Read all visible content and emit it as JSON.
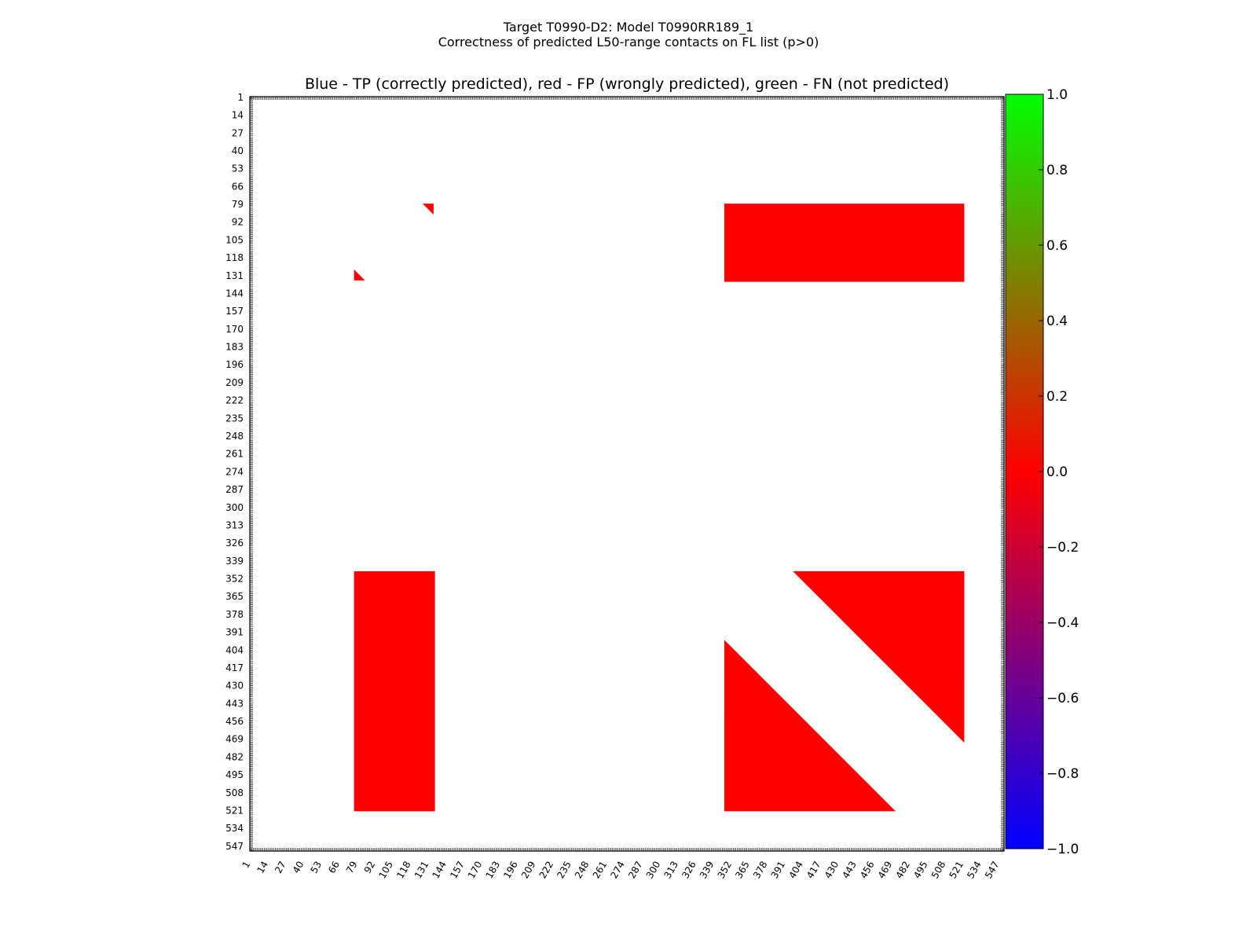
{
  "chart_data": {
    "type": "heatmap",
    "title_line1": "Target T0990-D2: Model T0990RR189_1",
    "title_line2": "Correctness of predicted L50-range contacts on FL list (p>0)",
    "subtitle": "Blue - TP (correctly predicted), red - FP (wrongly predicted), green - FN (not predicted)",
    "xlabel": "",
    "ylabel": "",
    "axis_range": [
      1,
      550
    ],
    "ticks": [
      "1",
      "14",
      "27",
      "40",
      "53",
      "66",
      "79",
      "92",
      "105",
      "118",
      "131",
      "144",
      "157",
      "170",
      "183",
      "196",
      "209",
      "222",
      "235",
      "248",
      "261",
      "274",
      "287",
      "300",
      "313",
      "326",
      "339",
      "352",
      "365",
      "378",
      "391",
      "404",
      "417",
      "430",
      "443",
      "456",
      "469",
      "482",
      "495",
      "508",
      "521",
      "534",
      "547"
    ],
    "colorbar": {
      "vmin": -1.0,
      "vmax": 1.0,
      "ticks": [
        "1.0",
        "0.8",
        "0.6",
        "0.4",
        "0.2",
        "0.0",
        "−0.2",
        "−0.4",
        "−0.6",
        "−0.8",
        "−1.0"
      ],
      "colors": [
        "#0000ff",
        "#ff0000",
        "#00ff00"
      ]
    },
    "regions": [
      {
        "shape": "triangle",
        "value": 0.0,
        "points": [
          [
            127,
            79
          ],
          [
            135,
            79
          ],
          [
            135,
            87
          ]
        ]
      },
      {
        "shape": "triangle",
        "value": 0.0,
        "points": [
          [
            77,
            127
          ],
          [
            77,
            135
          ],
          [
            85,
            135
          ]
        ]
      },
      {
        "shape": "rect",
        "value": 0.0,
        "x": [
          347,
          522
        ],
        "y": [
          79,
          136
        ]
      },
      {
        "shape": "rect",
        "value": 0.0,
        "x": [
          77,
          136
        ],
        "y": [
          347,
          522
        ]
      },
      {
        "shape": "triangle",
        "value": 0.0,
        "points": [
          [
            397,
            347
          ],
          [
            522,
            347
          ],
          [
            522,
            472
          ]
        ]
      },
      {
        "shape": "triangle",
        "value": 0.0,
        "points": [
          [
            347,
            397
          ],
          [
            347,
            522
          ],
          [
            472,
            522
          ]
        ]
      }
    ]
  }
}
